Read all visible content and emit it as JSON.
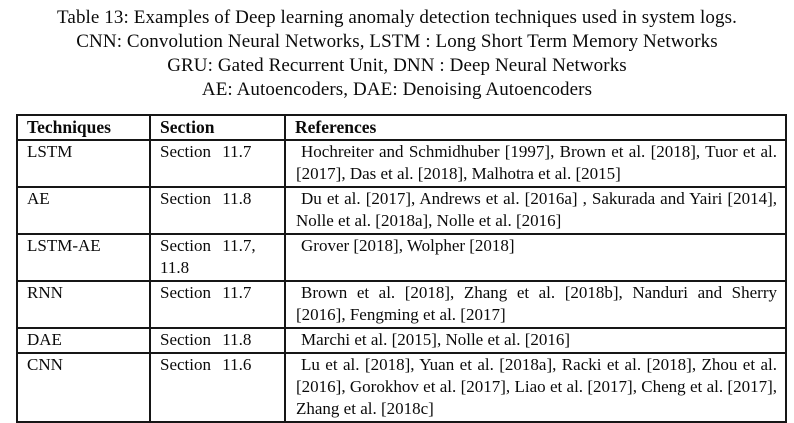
{
  "caption": {
    "lines": [
      "Table 13: Examples of Deep learning anomaly detection techniques used in system logs.",
      "CNN: Convolution Neural Networks, LSTM : Long Short Term Memory Networks",
      "GRU: Gated Recurrent Unit, DNN : Deep Neural Networks",
      "AE: Autoencoders, DAE: Denoising Autoencoders"
    ]
  },
  "table": {
    "headers": [
      "Techniques",
      "Section",
      "References"
    ],
    "rows": [
      {
        "technique": "LSTM",
        "section": "Section 11.7",
        "references": "Hochreiter and Schmidhuber [1997], Brown et al. [2018], Tuor et al. [2017], Das et al. [2018], Malhotra et al. [2015]"
      },
      {
        "technique": "AE",
        "section": "Section 11.8",
        "references": "Du et al. [2017], Andrews et al. [2016a] , Sakurada and Yairi [2014], Nolle et al. [2018a], Nolle et al. [2016]"
      },
      {
        "technique": "LSTM-AE",
        "section": "Section 11.7, 11.8",
        "references": "Grover [2018], Wolpher [2018]"
      },
      {
        "technique": "RNN",
        "section": "Section 11.7",
        "references": "Brown et al. [2018], Zhang et al. [2018b], Nanduri and Sherry [2016], Fengming et al. [2017]"
      },
      {
        "technique": "DAE",
        "section": "Section 11.8",
        "references": "Marchi et al. [2015], Nolle et al. [2016]"
      },
      {
        "technique": "CNN",
        "section": "Section 11.6",
        "references": "Lu et al. [2018], Yuan et al. [2018a], Racki et al. [2018], Zhou et al. [2016], Gorokhov et al. [2017], Liao et al. [2017], Cheng et al. [2017], Zhang et al. [2018c]"
      }
    ]
  }
}
